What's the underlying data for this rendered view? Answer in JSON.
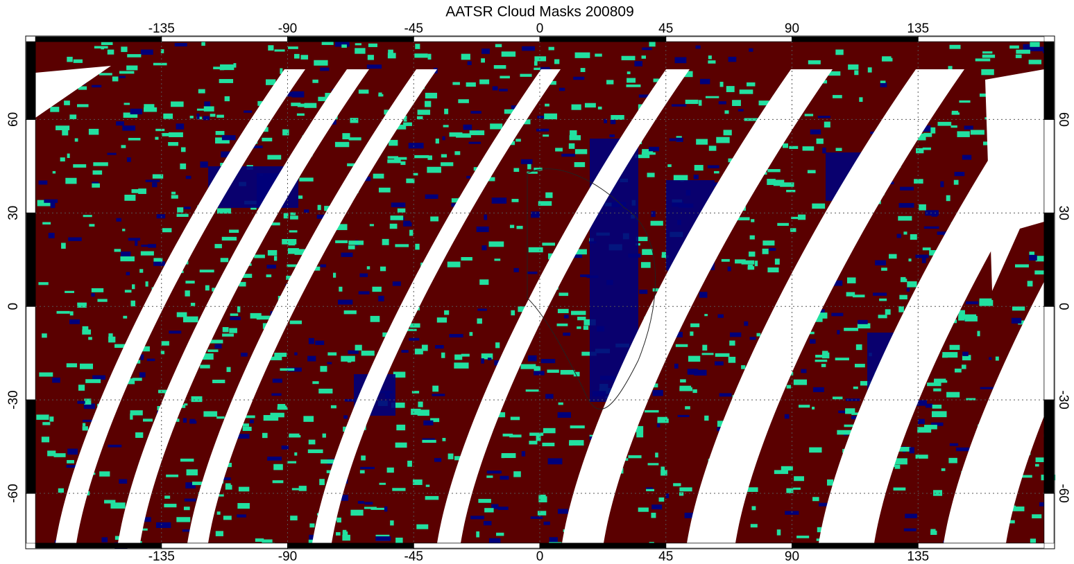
{
  "chart_data": {
    "type": "map",
    "title": "AATSR Cloud Masks 200809",
    "xlim": [
      -180,
      180
    ],
    "ylim": [
      -76,
      85
    ],
    "xticks": [
      -135,
      -90,
      -45,
      0,
      45,
      90,
      135
    ],
    "yticks": [
      60,
      30,
      0,
      -30,
      -60
    ],
    "grid": true
  }
}
